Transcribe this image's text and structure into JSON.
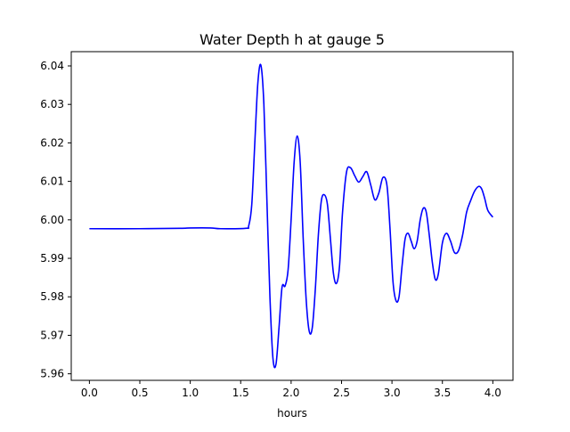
{
  "chart_data": {
    "type": "line",
    "title": "Water Depth h at gauge 5",
    "xlabel": "hours",
    "ylabel": "",
    "xlim": [
      -0.18,
      4.2
    ],
    "ylim": [
      5.9583,
      6.0437
    ],
    "xticks": [
      0.0,
      0.5,
      1.0,
      1.5,
      2.0,
      2.5,
      3.0,
      3.5,
      4.0
    ],
    "xtick_labels": [
      "0.0",
      "0.5",
      "1.0",
      "1.5",
      "2.0",
      "2.5",
      "3.0",
      "3.5",
      "4.0"
    ],
    "yticks": [
      5.96,
      5.97,
      5.98,
      5.99,
      6.0,
      6.01,
      6.02,
      6.03,
      6.04
    ],
    "ytick_labels": [
      "5.96",
      "5.97",
      "5.98",
      "5.99",
      "6.00",
      "6.01",
      "6.02",
      "6.03",
      "6.04"
    ],
    "grid": false,
    "series": [
      {
        "color": "#0000ff",
        "x": [
          0.0,
          0.5,
          0.9,
          1.0,
          1.2,
          1.3,
          1.55,
          1.58,
          1.61,
          1.64,
          1.67,
          1.7,
          1.73,
          1.76,
          1.79,
          1.82,
          1.85,
          1.88,
          1.91,
          1.94,
          1.97,
          2.0,
          2.03,
          2.06,
          2.09,
          2.12,
          2.15,
          2.18,
          2.21,
          2.24,
          2.27,
          2.3,
          2.33,
          2.36,
          2.39,
          2.42,
          2.45,
          2.48,
          2.51,
          2.55,
          2.59,
          2.63,
          2.67,
          2.71,
          2.75,
          2.79,
          2.83,
          2.87,
          2.91,
          2.95,
          2.98,
          3.01,
          3.04,
          3.07,
          3.1,
          3.13,
          3.16,
          3.19,
          3.22,
          3.25,
          3.28,
          3.31,
          3.34,
          3.37,
          3.4,
          3.43,
          3.46,
          3.5,
          3.54,
          3.58,
          3.62,
          3.66,
          3.7,
          3.74,
          3.78,
          3.82,
          3.86,
          3.89,
          3.92,
          3.95,
          4.0
        ],
        "y": [
          5.9977,
          5.9977,
          5.9978,
          5.9979,
          5.9979,
          5.9977,
          5.9978,
          5.9985,
          6.004,
          6.02,
          6.0355,
          6.0402,
          6.03,
          6.005,
          5.98,
          5.964,
          5.9625,
          5.972,
          5.9825,
          5.9828,
          5.987,
          6.0,
          6.015,
          6.0218,
          6.015,
          5.995,
          5.979,
          5.971,
          5.972,
          5.982,
          5.996,
          6.005,
          6.0065,
          6.004,
          5.995,
          5.986,
          5.9835,
          5.988,
          6.002,
          6.0125,
          6.0135,
          6.0115,
          6.0098,
          6.0112,
          6.0125,
          6.009,
          6.0052,
          6.007,
          6.011,
          6.009,
          5.998,
          5.984,
          5.979,
          5.98,
          5.988,
          5.995,
          5.9965,
          5.9945,
          5.9925,
          5.9945,
          6.0,
          6.003,
          6.002,
          5.996,
          5.989,
          5.9845,
          5.986,
          5.994,
          5.9965,
          5.9945,
          5.9915,
          5.992,
          5.996,
          6.002,
          6.005,
          6.0075,
          6.0087,
          6.008,
          6.0055,
          6.0025,
          6.0007
        ]
      }
    ]
  }
}
